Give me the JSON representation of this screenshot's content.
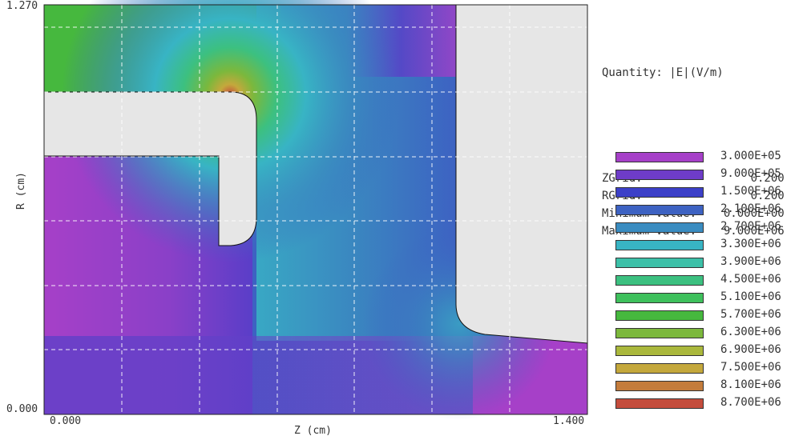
{
  "quantity_label": "Quantity: |E|(V/m)",
  "stats": [
    {
      "key": "ZGrid:",
      "value": "0.200"
    },
    {
      "key": "RGrid:",
      "value": "0.200"
    },
    {
      "key": "Minimum value:",
      "value": "0.000E+00"
    },
    {
      "key": "Maximum value:",
      "value": "9.000E+06"
    }
  ],
  "legend": [
    {
      "label": "3.000E+05",
      "color": "#a640c8"
    },
    {
      "label": "9.000E+05",
      "color": "#6e3cc8"
    },
    {
      "label": "1.500E+06",
      "color": "#3c40c8"
    },
    {
      "label": "2.100E+06",
      "color": "#3d62c2"
    },
    {
      "label": "2.700E+06",
      "color": "#3a8cc0"
    },
    {
      "label": "3.300E+06",
      "color": "#38b4c4"
    },
    {
      "label": "3.900E+06",
      "color": "#3cc0a8"
    },
    {
      "label": "4.500E+06",
      "color": "#3cc080"
    },
    {
      "label": "5.100E+06",
      "color": "#3ec05c"
    },
    {
      "label": "5.700E+06",
      "color": "#46b83e"
    },
    {
      "label": "6.300E+06",
      "color": "#7cb83c"
    },
    {
      "label": "6.900E+06",
      "color": "#aab83c"
    },
    {
      "label": "7.500E+06",
      "color": "#c4a83c"
    },
    {
      "label": "8.100E+06",
      "color": "#c47c3c"
    },
    {
      "label": "8.700E+06",
      "color": "#c44c3c"
    }
  ],
  "chart_data": {
    "type": "heatmap",
    "quantity": "|E|(V/m)",
    "xlabel": "Z (cm)",
    "ylabel": "R (cm)",
    "x_tick_labels": [
      "0.000",
      "1.400"
    ],
    "y_tick_labels": [
      "1.270",
      "0.000"
    ],
    "xlim": [
      0.0,
      1.4
    ],
    "ylim": [
      0.0,
      1.27
    ],
    "zgrid": 0.2,
    "rgrid": 0.2,
    "grid": true,
    "min_value": 0.0,
    "max_value": 9000000.0,
    "contour_levels": [
      300000,
      900000,
      1500000,
      2100000,
      2700000,
      3300000,
      3900000,
      4500000,
      5100000,
      5700000,
      6300000,
      6900000,
      7500000,
      8100000,
      8700000
    ],
    "legend_position": "right"
  }
}
